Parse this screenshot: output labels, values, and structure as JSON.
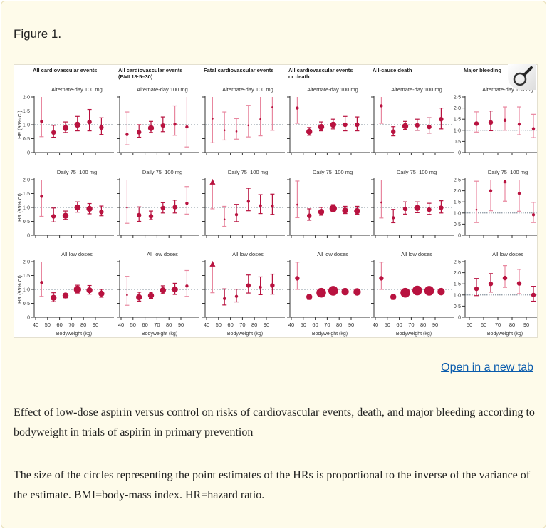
{
  "figure_label": "Figure 1.",
  "open_link": "Open in a new tab",
  "caption": [
    "Effect of low-dose aspirin versus control on risks of cardiovascular events, death, and major bleeding according to bodyweight in trials of aspirin in primary prevention",
    "The size of the circles representing the point estimates of the HRs is proportional to the inverse of the variance of the estimate. BMI=body-mass index. HR=hazard ratio."
  ],
  "colors": {
    "point": "#b8123f",
    "ci_light": "#e8879f",
    "reference_line": "#5a6b7a"
  },
  "icons": {
    "zoom": "magnifier-icon"
  },
  "chart_data": {
    "type": "scatter",
    "subtype": "forest-plot-grid",
    "ylabel": "HR (95% CI)",
    "xlabel": "Bodyweight (kg)",
    "reference_line": 1.0,
    "columns": [
      {
        "title": "All cardiovascular events",
        "subtitle": "",
        "ylim": [
          0,
          2.0
        ],
        "yticks": [
          "0",
          "0·5",
          "1·0",
          "1·5",
          "2·0"
        ],
        "xticks": [
          "40",
          "50",
          "60",
          "70",
          "80",
          "90"
        ]
      },
      {
        "title": "All cardiovascular events",
        "subtitle": "(BMI 18·5–30)",
        "ylim": [
          0,
          2.0
        ],
        "xticks": [
          "40",
          "50",
          "60",
          "70",
          "80",
          "90"
        ]
      },
      {
        "title": "Fatal cardiovascular events",
        "subtitle": "",
        "ylim": [
          0,
          2.0
        ],
        "xticks": [
          "40",
          "50",
          "60",
          "70",
          "80",
          "90"
        ]
      },
      {
        "title": "All cardiovascular events",
        "subtitle": "or death",
        "ylim": [
          0,
          2.0
        ],
        "xticks": [
          "40",
          "50",
          "60",
          "70",
          "80",
          "90"
        ]
      },
      {
        "title": "All-cause death",
        "subtitle": "",
        "ylim": [
          0,
          2.0
        ],
        "xticks": [
          "40",
          "50",
          "60",
          "70",
          "80",
          "90"
        ]
      },
      {
        "title": "Major bleeding",
        "subtitle": "",
        "ylim": [
          0,
          2.5
        ],
        "yticks": [
          "0",
          "0·5",
          "1·0",
          "1·5",
          "2·0",
          "2·5"
        ],
        "xticks": [
          "50",
          "60",
          "70",
          "80",
          "90"
        ]
      }
    ],
    "rows": [
      "Alternate-day 100 mg",
      "Daily 75–100 mg",
      "All low doses"
    ],
    "point_fields": [
      "bodyweight_kg",
      "hr",
      "ci_low",
      "ci_high",
      "weight"
    ],
    "panels": [
      [
        [
          [
            45,
            1.12,
            0.57,
            2.0,
            1
          ],
          [
            55,
            0.72,
            0.55,
            0.98,
            2
          ],
          [
            65,
            0.88,
            0.72,
            1.1,
            3
          ],
          [
            75,
            1.0,
            0.78,
            1.3,
            3
          ],
          [
            85,
            1.1,
            0.78,
            1.55,
            2
          ],
          [
            95,
            0.9,
            0.65,
            1.25,
            2
          ]
        ],
        [
          [
            45,
            0.65,
            0.28,
            1.46,
            1
          ],
          [
            55,
            0.73,
            0.55,
            1.0,
            2
          ],
          [
            65,
            0.88,
            0.72,
            1.12,
            3
          ],
          [
            75,
            0.97,
            0.75,
            1.28,
            2
          ],
          [
            85,
            1.02,
            0.62,
            1.68,
            1
          ],
          [
            95,
            0.92,
            0.2,
            2.0,
            1
          ]
        ],
        [
          [
            45,
            1.22,
            0.35,
            2.0,
            0
          ],
          [
            55,
            0.8,
            0.45,
            1.46,
            0
          ],
          [
            65,
            0.76,
            0.48,
            1.22,
            0
          ],
          [
            75,
            0.98,
            0.56,
            1.7,
            0
          ],
          [
            85,
            1.2,
            0.6,
            2.0,
            0
          ],
          [
            95,
            1.63,
            0.8,
            2.0,
            0
          ]
        ],
        [
          [
            45,
            1.6,
            1.05,
            2.0,
            1
          ],
          [
            55,
            0.75,
            0.62,
            0.9,
            3
          ],
          [
            65,
            0.92,
            0.78,
            1.1,
            3
          ],
          [
            75,
            1.0,
            0.85,
            1.2,
            3
          ],
          [
            85,
            1.0,
            0.78,
            1.3,
            2
          ],
          [
            95,
            1.0,
            0.78,
            1.28,
            2
          ]
        ],
        [
          [
            45,
            1.68,
            1.05,
            2.0,
            1
          ],
          [
            55,
            0.75,
            0.6,
            0.93,
            2
          ],
          [
            65,
            0.95,
            0.83,
            1.12,
            3
          ],
          [
            75,
            0.98,
            0.8,
            1.2,
            2
          ],
          [
            85,
            0.92,
            0.7,
            1.25,
            2
          ],
          [
            95,
            1.2,
            0.85,
            1.6,
            2
          ]
        ],
        [
          [
            55,
            1.3,
            0.92,
            1.83,
            2
          ],
          [
            65,
            1.35,
            0.98,
            1.87,
            2
          ],
          [
            75,
            1.45,
            1.0,
            2.05,
            1
          ],
          [
            85,
            1.27,
            0.8,
            2.05,
            1
          ],
          [
            95,
            1.07,
            0.67,
            1.72,
            1
          ]
        ]
      ],
      [
        [
          [
            45,
            1.4,
            0.68,
            2.0,
            1
          ],
          [
            55,
            0.68,
            0.48,
            0.98,
            2
          ],
          [
            65,
            0.7,
            0.57,
            0.87,
            3
          ],
          [
            75,
            1.0,
            0.83,
            1.2,
            3
          ],
          [
            85,
            0.95,
            0.77,
            1.14,
            3
          ],
          [
            95,
            0.84,
            0.7,
            1.05,
            2
          ]
        ],
        [
          [
            45,
            1.0,
            0.43,
            2.0,
            0
          ],
          [
            55,
            0.72,
            0.5,
            1.02,
            2
          ],
          [
            65,
            0.68,
            0.56,
            0.87,
            2
          ],
          [
            75,
            0.98,
            0.8,
            1.17,
            2
          ],
          [
            85,
            1.01,
            0.8,
            1.26,
            2
          ],
          [
            95,
            1.15,
            0.76,
            1.75,
            1
          ]
        ],
        [
          [
            45,
            1.9,
            0.95,
            2.0,
            -1
          ],
          [
            55,
            0.57,
            0.32,
            1.04,
            0
          ],
          [
            65,
            0.74,
            0.49,
            1.11,
            1
          ],
          [
            75,
            1.22,
            0.88,
            1.69,
            1
          ],
          [
            85,
            1.06,
            0.78,
            1.46,
            1
          ],
          [
            95,
            1.05,
            0.75,
            1.48,
            1
          ]
        ],
        [
          [
            45,
            1.1,
            0.63,
            1.95,
            0
          ],
          [
            55,
            0.7,
            0.54,
            0.95,
            2
          ],
          [
            65,
            0.84,
            0.72,
            1.0,
            3
          ],
          [
            75,
            0.96,
            0.86,
            1.1,
            4
          ],
          [
            85,
            0.89,
            0.78,
            1.04,
            3
          ],
          [
            95,
            0.87,
            0.76,
            1.04,
            3
          ]
        ],
        [
          [
            45,
            1.18,
            0.62,
            2.0,
            0
          ],
          [
            55,
            0.63,
            0.45,
            0.93,
            1
          ],
          [
            65,
            0.95,
            0.76,
            1.2,
            2
          ],
          [
            75,
            0.98,
            0.81,
            1.2,
            3
          ],
          [
            85,
            0.92,
            0.75,
            1.15,
            2
          ],
          [
            95,
            0.99,
            0.8,
            1.24,
            2
          ]
        ],
        [
          [
            55,
            1.15,
            0.57,
            2.43,
            0
          ],
          [
            65,
            2.0,
            1.1,
            2.5,
            1
          ],
          [
            75,
            2.4,
            1.53,
            2.5,
            1
          ],
          [
            85,
            1.88,
            1.08,
            2.5,
            1
          ],
          [
            95,
            0.92,
            0.57,
            1.48,
            1
          ]
        ]
      ],
      [
        [
          [
            45,
            1.25,
            0.75,
            2.0,
            1
          ],
          [
            55,
            0.7,
            0.56,
            0.88,
            3
          ],
          [
            65,
            0.78,
            0.7,
            0.85,
            3
          ],
          [
            75,
            1.0,
            0.87,
            1.15,
            4
          ],
          [
            85,
            0.97,
            0.83,
            1.14,
            3
          ],
          [
            95,
            0.85,
            0.72,
            1.0,
            3
          ]
        ],
        [
          [
            45,
            0.8,
            0.43,
            1.47,
            0
          ],
          [
            55,
            0.72,
            0.58,
            0.9,
            3
          ],
          [
            65,
            0.78,
            0.68,
            0.9,
            3
          ],
          [
            75,
            0.97,
            0.85,
            1.13,
            3
          ],
          [
            85,
            1.0,
            0.82,
            1.22,
            3
          ],
          [
            95,
            1.12,
            0.75,
            1.68,
            1
          ]
        ],
        [
          [
            45,
            1.9,
            0.88,
            2.0,
            -1
          ],
          [
            55,
            0.67,
            0.44,
            1.02,
            1
          ],
          [
            65,
            0.75,
            0.55,
            1.01,
            1
          ],
          [
            75,
            1.14,
            0.87,
            1.52,
            2
          ],
          [
            85,
            1.08,
            0.81,
            1.45,
            1
          ],
          [
            95,
            1.14,
            0.83,
            1.55,
            2
          ]
        ],
        [
          [
            45,
            1.4,
            1.0,
            1.98,
            2
          ],
          [
            55,
            0.73,
            0.64,
            0.8,
            3
          ],
          [
            65,
            0.88,
            0.8,
            0.98,
            5
          ],
          [
            75,
            0.95,
            0.88,
            1.03,
            5
          ],
          [
            85,
            0.92,
            0.86,
            0.98,
            4
          ],
          [
            95,
            0.91,
            0.85,
            0.97,
            4
          ]
        ],
        [
          [
            45,
            1.4,
            1.0,
            1.98,
            2
          ],
          [
            55,
            0.73,
            0.64,
            0.8,
            3
          ],
          [
            65,
            0.88,
            0.8,
            0.98,
            5
          ],
          [
            75,
            0.96,
            0.9,
            1.02,
            5
          ],
          [
            85,
            0.95,
            0.88,
            1.0,
            5
          ],
          [
            95,
            0.92,
            0.86,
            0.98,
            4
          ]
        ],
        [
          [
            55,
            1.28,
            0.97,
            1.74,
            2
          ],
          [
            65,
            1.5,
            1.13,
            1.96,
            2
          ],
          [
            75,
            1.76,
            1.34,
            2.32,
            2
          ],
          [
            85,
            1.52,
            1.06,
            2.15,
            2
          ],
          [
            95,
            1.0,
            0.72,
            1.39,
            2
          ]
        ]
      ]
    ]
  }
}
